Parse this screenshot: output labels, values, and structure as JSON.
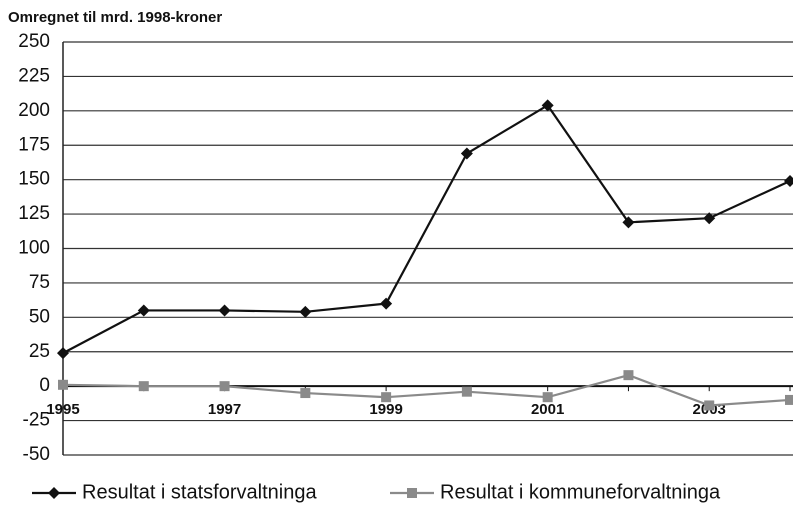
{
  "chart_data": {
    "type": "line",
    "title": "Omregnet til mrd. 1998-kroner",
    "categories": [
      "1995",
      null,
      "1997",
      null,
      "1999",
      null,
      "2001",
      null,
      "2003",
      null
    ],
    "series": [
      {
        "name": "Resultat i statsforvaltninga",
        "color": "#111111",
        "marker": "diamond",
        "values": [
          24,
          55,
          55,
          54,
          60,
          169,
          204,
          119,
          122,
          149
        ]
      },
      {
        "name": "Resultat i kommuneforvaltninga",
        "color": "#8a8a8a",
        "marker": "square",
        "values": [
          1,
          0,
          0,
          -5,
          -8,
          -4,
          -8,
          8,
          -14,
          -10
        ]
      }
    ],
    "ylim": [
      -50,
      250
    ],
    "yticks": [
      -50,
      -25,
      0,
      25,
      50,
      75,
      100,
      125,
      150,
      175,
      200,
      225,
      250
    ],
    "grid": true,
    "legend": "bottom"
  }
}
